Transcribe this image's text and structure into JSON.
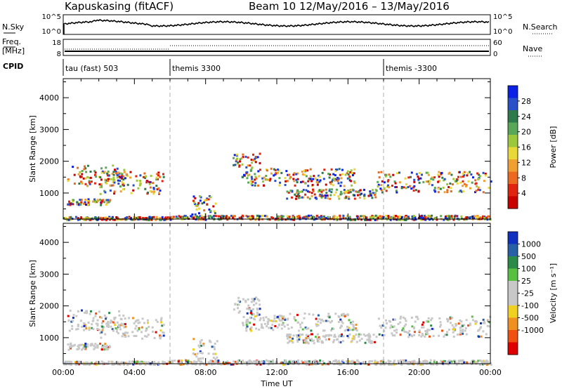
{
  "header": {
    "station": "Kapuskasing (fitACF)",
    "beam_info": "Beam 10  12/May/2016 – 13/May/2016"
  },
  "noise_panel": {
    "left_label": "N.Sky",
    "right_label": "N.Search",
    "left_ticks": [
      "10^5",
      "10^0"
    ],
    "right_ticks": [
      "10^5",
      "10^0"
    ]
  },
  "freq_panel": {
    "left_label_1": "Freq.",
    "left_label_2": "[MHz]",
    "right_label": "Nave",
    "left_ticks": [
      "18",
      "8"
    ],
    "right_ticks": [
      "60",
      "0"
    ]
  },
  "cpid": {
    "label": "CPID",
    "segments": [
      {
        "start_hour": 0,
        "name": "tau (fast) 503"
      },
      {
        "start_hour": 6,
        "name": "themis 3300"
      },
      {
        "start_hour": 18,
        "name": "themis -3300"
      }
    ]
  },
  "chart_data": [
    {
      "type": "heatmap",
      "name": "power",
      "ylabel": "Slant Range [km]",
      "xlabel": "",
      "xlim": [
        0,
        24
      ],
      "ylim": [
        180,
        4600
      ],
      "yticks": [
        1000,
        2000,
        3000,
        4000
      ],
      "colorbar": {
        "label": "Power [dB]",
        "ticks": [
          "4",
          "8",
          "12",
          "16",
          "20",
          "24",
          "28"
        ],
        "colors": [
          "#0b22e6",
          "#2850c8",
          "#2f7a4a",
          "#58a858",
          "#9ec83c",
          "#e8d838",
          "#f0a030",
          "#ec6a20",
          "#e02410",
          "#c80000"
        ]
      }
    },
    {
      "type": "heatmap",
      "name": "velocity",
      "ylabel": "Slant Range [km]",
      "xlabel": "Time UT",
      "xlim": [
        0,
        24
      ],
      "ylim": [
        180,
        4600
      ],
      "yticks": [
        1000,
        2000,
        3000,
        4000
      ],
      "xticks": [
        "00:00",
        "04:00",
        "08:00",
        "12:00",
        "16:00",
        "20:00",
        "00:00"
      ],
      "colorbar": {
        "label": "Velocity  [m s⁻¹]",
        "ticks": [
          "1000",
          "500",
          "100",
          "25",
          "-25",
          "-100",
          "-500",
          "-1000"
        ],
        "colors": [
          "#1030c0",
          "#2860a8",
          "#2a8a48",
          "#58c040",
          "#c8c8c8",
          "#c8c8c8",
          "#f0d020",
          "#f09020",
          "#f05010",
          "#e00000"
        ]
      }
    }
  ]
}
